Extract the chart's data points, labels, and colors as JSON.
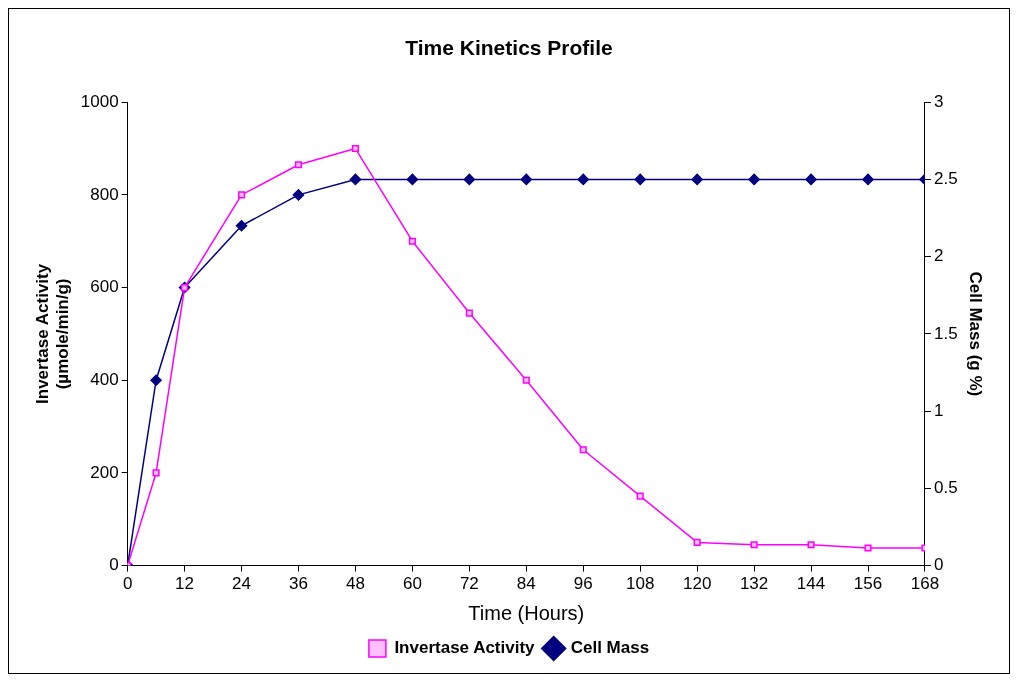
{
  "chart_data": {
    "type": "line",
    "title": "Time Kinetics Profile",
    "xlabel": "Time (Hours)",
    "ylabel": "Invertase Activity (µmole/min/g)",
    "y2label": "Cell Mass (g %)",
    "x": [
      0,
      6,
      12,
      24,
      36,
      48,
      60,
      72,
      84,
      96,
      108,
      120,
      132,
      144,
      156,
      168
    ],
    "series": [
      {
        "name": "Invertase Activity",
        "color": "#ff00ff",
        "marker": "square",
        "values": [
          0,
          200,
          600,
          800,
          865,
          900,
          700,
          545,
          400,
          250,
          150,
          50,
          45,
          45,
          38,
          38
        ]
      },
      {
        "name": "Cell Mass",
        "color": "#000080",
        "marker": "diamond",
        "axis": "y2",
        "values": [
          0,
          1.2,
          1.8,
          2.2,
          2.4,
          2.5,
          2.5,
          2.5,
          2.5,
          2.5,
          2.5,
          2.5,
          2.5,
          2.5,
          2.5,
          2.5
        ]
      }
    ],
    "xlim": [
      0,
      168
    ],
    "xticks": [
      0,
      12,
      24,
      36,
      48,
      60,
      72,
      84,
      96,
      108,
      120,
      132,
      144,
      156,
      168
    ],
    "ylim": [
      0,
      1000
    ],
    "yticks": [
      0,
      200,
      400,
      600,
      800,
      1000
    ],
    "y2lim": [
      0,
      3
    ],
    "y2ticks": [
      0,
      0.5,
      1,
      1.5,
      2,
      2.5,
      3
    ],
    "grid": false,
    "legend": "bottom"
  }
}
